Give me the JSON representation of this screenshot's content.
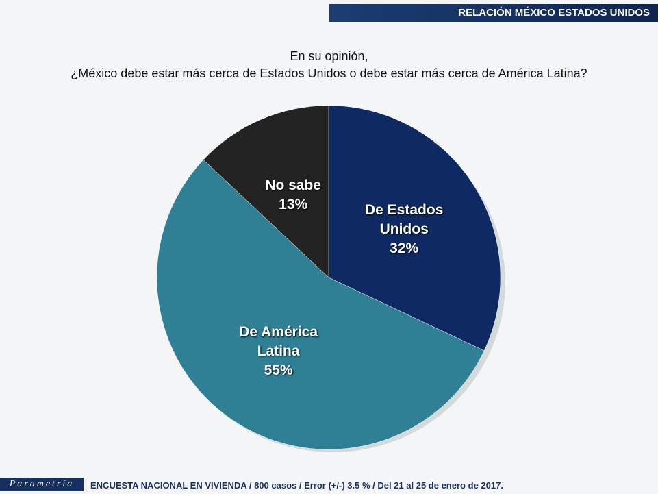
{
  "header": "RELACIÓN MÉXICO ESTADOS UNIDOS",
  "chart_data": {
    "type": "pie",
    "title": "En su opinión,",
    "subtitle": "¿México debe estar más cerca de Estados Unidos o debe estar más cerca de América Latina?",
    "categories": [
      "De Estados Unidos",
      "De América Latina",
      "No sabe"
    ],
    "values": [
      32,
      55,
      13
    ],
    "value_labels": [
      "32%",
      "55%",
      "13%"
    ],
    "colors": [
      "#0f2a62",
      "#2f8095",
      "#232323"
    ]
  },
  "footer": {
    "logo": "Parametría",
    "note": "ENCUESTA NACIONAL EN VIVIENDA / 800 casos / Error (+/-) 3.5 % / Del 21 al 25 de enero de 2017."
  }
}
